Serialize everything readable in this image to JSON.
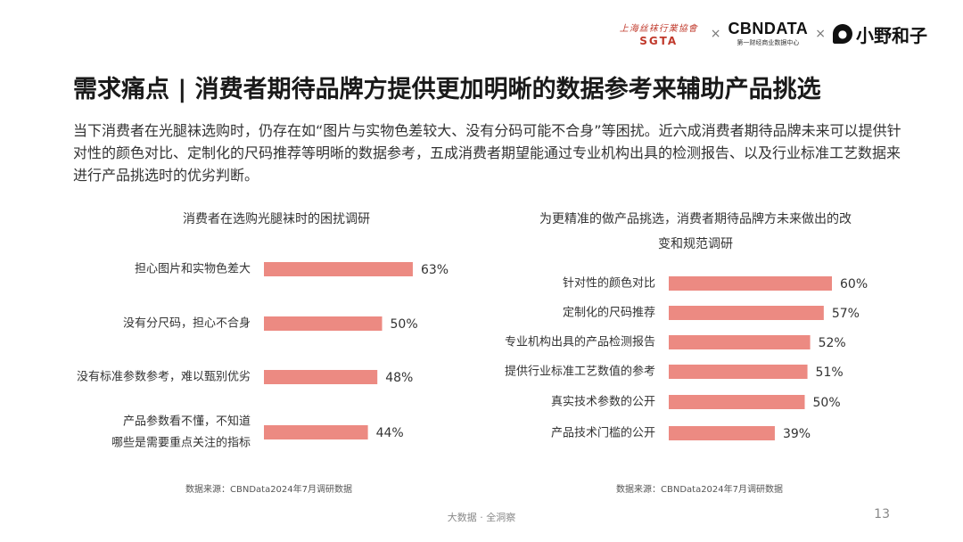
{
  "logos": {
    "sgta_calligraphy": "上海丝袜行業協會",
    "sgta_mark": "SGTA",
    "cbndata_main": "CBNDATA",
    "cbndata_sub": "第一财经商业数据中心",
    "xyhz_text": "小野和子",
    "separator": "×"
  },
  "page": {
    "title": "需求痛点 | 消费者期待品牌方提供更加明晰的数据参考来辅助产品挑选",
    "intro": "当下消费者在光腿袜选购时，仍存在如“图片与实物色差较大、没有分码可能不合身”等困扰。近六成消费者期待品牌未来可以提供针对性的颜色对比、定制化的尺码推荐等明晰的数据参考，五成消费者期望能通过专业机构出具的检测报告、以及行业标准工艺数据来进行产品挑选时的优劣判断。",
    "footer": "大数据 · 全洞察",
    "page_number": "13"
  },
  "chart_data": [
    {
      "type": "bar",
      "orientation": "horizontal",
      "title": "消费者在选购光腿袜时的困扰调研",
      "categories": [
        "担心图片和实物色差大",
        "没有分尺码，担心不合身",
        "没有标准参数参考，难以甄别优劣",
        "产品参数看不懂，不知道哪些是需要重点关注的指标"
      ],
      "values": [
        63,
        50,
        48,
        44
      ],
      "value_labels": [
        "63%",
        "50%",
        "48%",
        "44%"
      ],
      "xlim": [
        0,
        100
      ],
      "bar_color": "#ec8a82",
      "source": "数据来源：CBNData2024年7月调研数据"
    },
    {
      "type": "bar",
      "orientation": "horizontal",
      "title": "为更精准的做产品挑选，消费者期待品牌方未来做出的改变和规范调研",
      "categories": [
        "针对性的颜色对比",
        "定制化的尺码推荐",
        "专业机构出具的产品检测报告",
        "提供行业标准工艺数值的参考",
        "真实技术参数的公开",
        "产品技术门槛的公开"
      ],
      "values": [
        60,
        57,
        52,
        51,
        50,
        39
      ],
      "value_labels": [
        "60%",
        "57%",
        "52%",
        "51%",
        "50%",
        "39%"
      ],
      "xlim": [
        0,
        100
      ],
      "bar_color": "#ec8a82",
      "source": "数据来源：CBNData2024年7月调研数据"
    }
  ]
}
